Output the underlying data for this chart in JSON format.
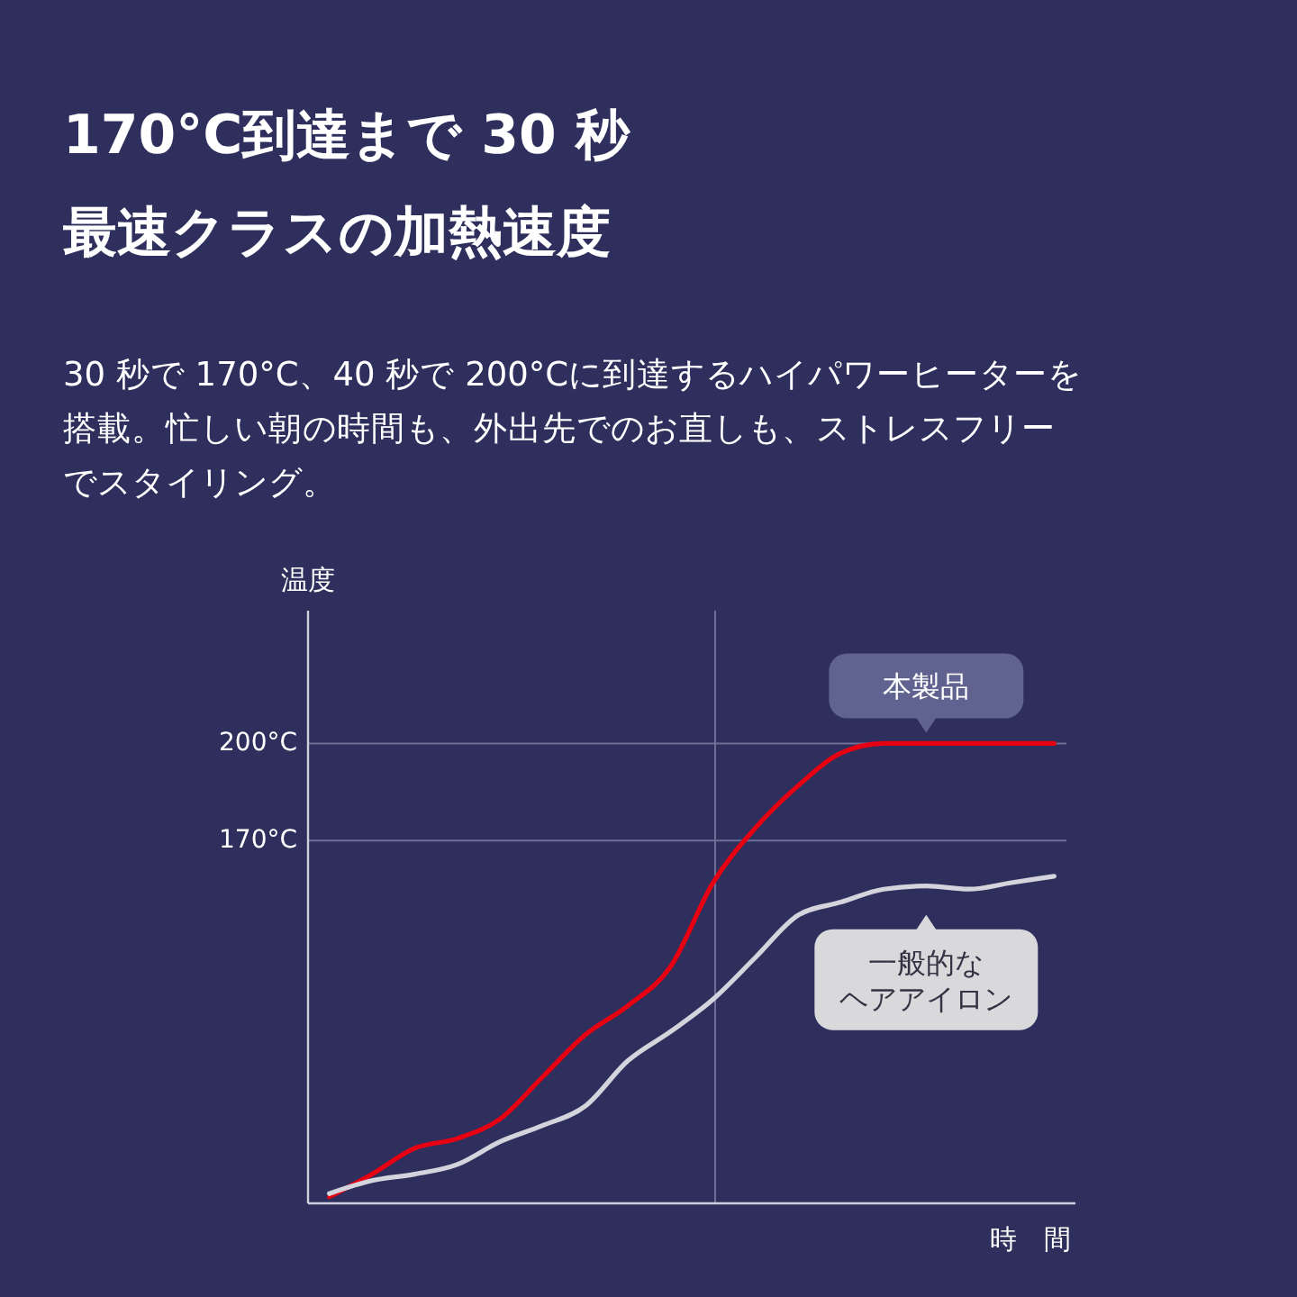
{
  "chart_data": {
    "type": "line",
    "title": "170°C到達まで 30 秒最速クラスの加熱速度",
    "subtitle": "30 秒で 170°C、40 秒で 200°Cに到達するハイパワーヒーターを搭載。忙しい朝の時間も、外出先でのお直しも、ストレスフリーでスタイリング。",
    "xlabel": "時　間",
    "ylabel": "温度",
    "categories": [
      null,
      null,
      null,
      null,
      null,
      null,
      null,
      null,
      null,
      null,
      null,
      null,
      null,
      null,
      null,
      null,
      null,
      null
    ],
    "series": [
      {
        "name": "本製品",
        "color": "#e60012",
        "values": [
          60,
          67,
          75,
          78,
          84,
          97,
          110,
          119,
          131,
          157,
          174,
          187,
          197,
          200,
          200,
          200,
          200,
          200
        ]
      },
      {
        "name": "一般的なヘアアイロン",
        "color": "#d4d4dc",
        "values": [
          61,
          65,
          67,
          70,
          77,
          82,
          88,
          102,
          111,
          121,
          134,
          147,
          151,
          155,
          156,
          155,
          157,
          159
        ]
      }
    ],
    "ylim": [
      58,
      241
    ],
    "yticks": [
      {
        "value": 200,
        "label": "200°C"
      },
      {
        "value": 170,
        "label": "170°C"
      }
    ],
    "grid": "y",
    "legend": "right",
    "marker": "none",
    "line_style": "solid"
  }
}
